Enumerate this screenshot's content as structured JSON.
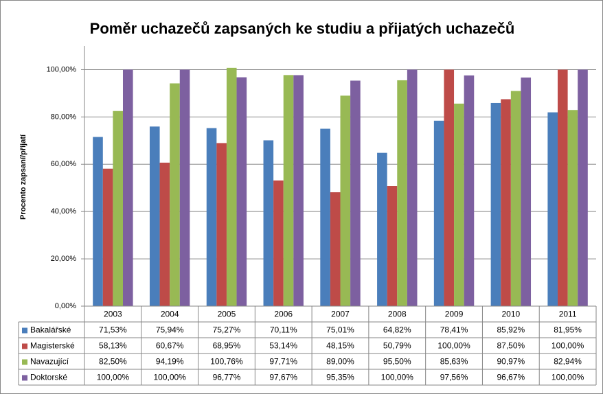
{
  "chart_data": {
    "type": "bar",
    "title": "Poměr uchazečů zapsaných ke studiu a přijatých uchazečů",
    "y_label": "Procento zapsaní/přijatí",
    "categories": [
      "2003",
      "2004",
      "2005",
      "2006",
      "2007",
      "2008",
      "2009",
      "2010",
      "2011"
    ],
    "series": [
      {
        "name": "Bakalářské",
        "color": "#4a7ebb",
        "values": [
          71.53,
          75.94,
          75.27,
          70.11,
          75.01,
          64.82,
          78.41,
          85.92,
          81.95
        ],
        "value_labels": [
          "71,53%",
          "75,94%",
          "75,27%",
          "70,11%",
          "75,01%",
          "64,82%",
          "78,41%",
          "85,92%",
          "81,95%"
        ]
      },
      {
        "name": "Magisterské",
        "color": "#be4b48",
        "values": [
          58.13,
          60.67,
          68.95,
          53.14,
          48.15,
          50.79,
          100,
          87.5,
          100
        ],
        "value_labels": [
          "58,13%",
          "60,67%",
          "68,95%",
          "53,14%",
          "48,15%",
          "50,79%",
          "100,00%",
          "87,50%",
          "100,00%"
        ]
      },
      {
        "name": "Navazující",
        "color": "#98b954",
        "values": [
          82.5,
          94.19,
          100.76,
          97.71,
          89,
          95.5,
          85.63,
          90.97,
          82.94
        ],
        "value_labels": [
          "82,50%",
          "94,19%",
          "100,76%",
          "97,71%",
          "89,00%",
          "95,50%",
          "85,63%",
          "90,97%",
          "82,94%"
        ]
      },
      {
        "name": "Doktorské",
        "color": "#7d60a0",
        "values": [
          100,
          100,
          96.77,
          97.67,
          95.35,
          100,
          97.56,
          96.67,
          100
        ],
        "value_labels": [
          "100,00%",
          "100,00%",
          "96,77%",
          "97,67%",
          "95,35%",
          "100,00%",
          "97,56%",
          "96,67%",
          "100,00%"
        ]
      }
    ],
    "ylim": [
      0,
      110
    ],
    "yticks": [
      {
        "value": 0,
        "label": "0,00%"
      },
      {
        "value": 20,
        "label": "20,00%"
      },
      {
        "value": 40,
        "label": "40,00%"
      },
      {
        "value": 60,
        "label": "60,00%"
      },
      {
        "value": 80,
        "label": "80,00%"
      },
      {
        "value": 100,
        "label": "100,00%"
      }
    ],
    "grid": true
  }
}
